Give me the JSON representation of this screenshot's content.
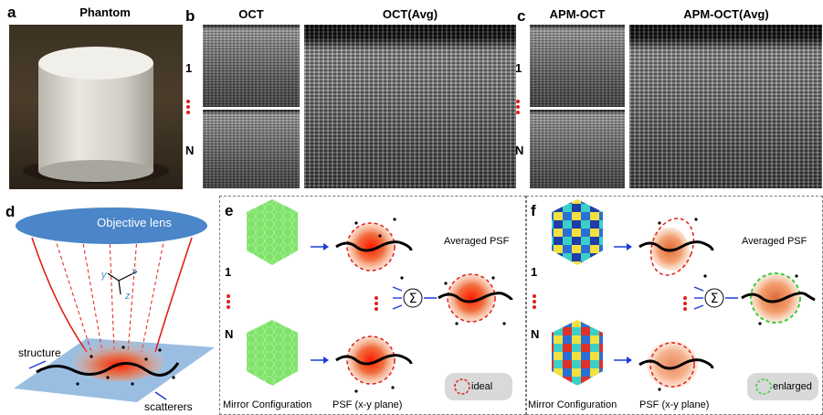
{
  "panel_a": {
    "label": "a",
    "title": "Phantom"
  },
  "panel_b": {
    "label": "b",
    "title_left": "OCT",
    "title_right": "OCT(Avg)",
    "row1": "1",
    "rowN": "N"
  },
  "panel_c": {
    "label": "c",
    "title_left": "APM-OCT",
    "title_right": "APM-OCT(Avg)",
    "row1": "1",
    "rowN": "N"
  },
  "panel_d": {
    "label": "d",
    "lens": "Objective lens",
    "axis_x": "x",
    "axis_y": "y",
    "axis_z": "z",
    "structure": "structure",
    "scatterers": "scatterers"
  },
  "panel_e": {
    "label": "e",
    "row1": "1",
    "rowN": "N",
    "caption_mirror": "Mirror Configuration",
    "caption_psf": "PSF (x-y plane)",
    "averaged": "Averaged PSF",
    "legend": "ideal"
  },
  "panel_f": {
    "label": "f",
    "row1": "1",
    "rowN": "N",
    "caption_mirror": "Mirror Configuration",
    "caption_psf": "PSF (x-y plane)",
    "averaged": "Averaged PSF",
    "legend": "enlarged"
  },
  "colors": {
    "dots": "#e0201a",
    "arrow": "#1a3cd8",
    "hex_green": "#7fe36a",
    "lens": "#4a86c8"
  }
}
